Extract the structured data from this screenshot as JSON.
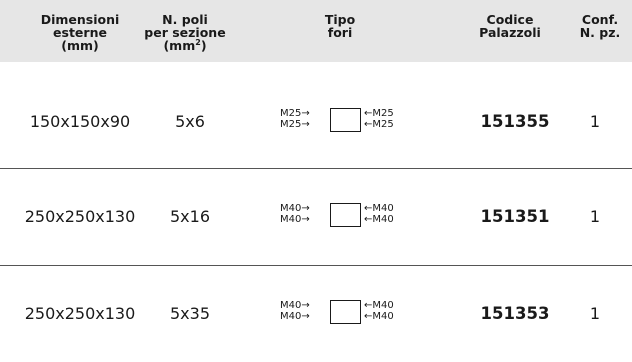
{
  "header": {
    "col_dimensions": [
      "Dimensioni",
      "esterne",
      "(mm)"
    ],
    "col_poles": [
      "N. poli",
      "per sezione",
      "(mm",
      "2",
      ")"
    ],
    "col_holes": [
      "Tipo",
      "fori"
    ],
    "col_code": [
      "Codice",
      "Palazzoli"
    ],
    "col_pack": [
      "Conf.",
      "N. pz."
    ]
  },
  "rows": [
    {
      "dimensions": "150x150x90",
      "poles": "5x6",
      "holes": {
        "left_top": "M25→",
        "left_bottom": "M25→",
        "right_top": "←M25",
        "right_bottom": "←M25"
      },
      "code": "151355",
      "pack": "1"
    },
    {
      "dimensions": "250x250x130",
      "poles": "5x16",
      "holes": {
        "left_top": "M40→",
        "left_bottom": "M40→",
        "right_top": "←M40",
        "right_bottom": "←M40"
      },
      "code": "151351",
      "pack": "1"
    },
    {
      "dimensions": "250x250x130",
      "poles": "5x35",
      "holes": {
        "left_top": "M40→",
        "left_bottom": "M40→",
        "right_top": "←M40",
        "right_bottom": "←M40"
      },
      "code": "151353",
      "pack": "1"
    }
  ]
}
